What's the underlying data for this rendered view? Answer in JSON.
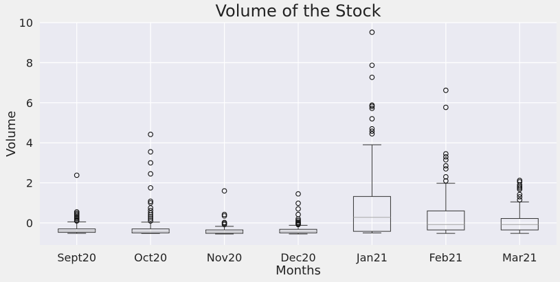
{
  "chart_data": {
    "type": "boxplot",
    "title": "Volume of the Stock",
    "xlabel": "Months",
    "ylabel": "Volume",
    "ylim": [
      -1.1,
      10
    ],
    "yticks": [
      0,
      2,
      4,
      6,
      8,
      10
    ],
    "grid": true,
    "colors": {
      "figure_background": "#f0f0f0",
      "plot_background": "#eaeaf2",
      "grid": "#ffffff",
      "box": "#333333",
      "median": "#a8a8a8"
    },
    "categories": [
      "Sept20",
      "Oct20",
      "Nov20",
      "Dec20",
      "Jan21",
      "Feb21",
      "Mar21"
    ],
    "boxes": [
      {
        "category": "Sept20",
        "whisker_low": -0.52,
        "q1": -0.47,
        "median": -0.4,
        "q3": -0.3,
        "whisker_high": 0.05,
        "outliers": [
          2.38,
          0.55,
          0.48,
          0.42,
          0.35,
          0.28,
          0.22,
          0.15,
          0.1
        ]
      },
      {
        "category": "Oct20",
        "whisker_low": -0.52,
        "q1": -0.5,
        "median": -0.42,
        "q3": -0.3,
        "whisker_high": 0.04,
        "outliers": [
          4.42,
          3.55,
          3.0,
          2.45,
          1.75,
          1.08,
          1.0,
          0.75,
          0.62,
          0.5,
          0.4,
          0.3,
          0.2,
          0.1
        ]
      },
      {
        "category": "Nov20",
        "whisker_low": -0.55,
        "q1": -0.52,
        "median": -0.45,
        "q3": -0.35,
        "whisker_high": -0.17,
        "outliers": [
          1.6,
          0.42,
          0.35,
          0.02,
          -0.02,
          -0.08
        ]
      },
      {
        "category": "Dec20",
        "whisker_low": -0.55,
        "q1": -0.5,
        "median": -0.42,
        "q3": -0.32,
        "whisker_high": -0.12,
        "outliers": [
          1.45,
          0.98,
          0.7,
          0.42,
          0.2,
          0.12,
          0.05,
          0.0,
          -0.05,
          -0.08
        ]
      },
      {
        "category": "Jan21",
        "whisker_low": -0.5,
        "q1": -0.42,
        "median": 0.28,
        "q3": 1.32,
        "whisker_high": 3.9,
        "outliers": [
          9.52,
          7.87,
          7.27,
          5.88,
          5.82,
          5.72,
          5.2,
          4.7,
          4.58,
          4.45
        ]
      },
      {
        "category": "Feb21",
        "whisker_low": -0.52,
        "q1": -0.35,
        "median": -0.08,
        "q3": 0.6,
        "whisker_high": 1.98,
        "outliers": [
          6.62,
          5.77,
          3.45,
          3.3,
          3.15,
          2.85,
          2.7,
          2.3,
          2.1
        ]
      },
      {
        "category": "Mar21",
        "whisker_low": -0.52,
        "q1": -0.35,
        "median": -0.08,
        "q3": 0.22,
        "whisker_high": 1.05,
        "outliers": [
          2.12,
          2.05,
          1.9,
          1.82,
          1.75,
          1.68,
          1.42,
          1.3,
          1.15
        ]
      }
    ]
  }
}
